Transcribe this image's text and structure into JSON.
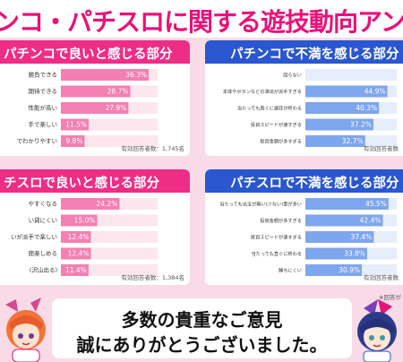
{
  "header": {
    "title": "ンコ・パチスロに関する遊技動向アンケート結"
  },
  "colors": {
    "pink_head": "#ee2d86",
    "pink_bar": "#f47fb2",
    "pink_track": "#fde6ee",
    "blue_head": "#2a56cf",
    "blue_bar": "#7ea6ee",
    "blue_track": "#e6eefb",
    "background": "#f8dbe6"
  },
  "chart_data": [
    {
      "type": "bar",
      "title": "パチンコで良いと感じる部分",
      "categories": [
        "勝負できる",
        "期待できる",
        "性能が高い",
        "手で楽しい",
        "でわかりやすい"
      ],
      "values": [
        36.3,
        28.7,
        27.9,
        11.5,
        9.8
      ],
      "value_labels": [
        "36.3%",
        "28.7%",
        "27.9%",
        "11.5%",
        "9.8%"
      ],
      "respondents": "有効回答者数：1,745名",
      "xlim": [
        0,
        40
      ]
    },
    {
      "type": "bar",
      "title": "パチンコで不満を感じる部分",
      "categories": [
        "回らない",
        "本体やボタンなどの演出が派手すぎる",
        "当たっても直ぐに連荘が終わる",
        "投資スピードが速すぎる",
        "投資金額が多すぎる"
      ],
      "values": [
        null,
        44.9,
        40.3,
        37.2,
        32.7
      ],
      "value_labels": [
        "",
        "44.9%",
        "40.3%",
        "37.2%",
        "32.7%"
      ],
      "respondents": "有効回答者数",
      "xlim": [
        0,
        50
      ]
    },
    {
      "type": "bar",
      "title": "チスロで良いと感じる部分",
      "categories": [
        "やすくなる",
        "い貸にくい",
        "いが派手で楽しい",
        "簡楽しめる",
        "(沢山出る)"
      ],
      "values": [
        24.2,
        15.0,
        12.4,
        12.4,
        11.4
      ],
      "value_labels": [
        "24.2%",
        "15.0%",
        "12.4%",
        "12.4%",
        "11.4%"
      ],
      "respondents": "有効回答者数：1,384名",
      "xlim": [
        0,
        40
      ]
    },
    {
      "type": "bar",
      "title": "パチスロで不満を感じる部分",
      "categories": [
        "当たっても出玉が無い(少ない)事が多い",
        "投資金額が多すぎる",
        "投資スピードが速すぎる",
        "当たっても直ぐに終わる",
        "勝ちにくい"
      ],
      "values": [
        45.5,
        42.4,
        37.4,
        33.8,
        30.9
      ],
      "value_labels": [
        "45.5%",
        "42.4%",
        "37.4%",
        "33.8%",
        "30.9%"
      ],
      "respondents": "有効回答者数",
      "xlim": [
        0,
        50
      ]
    }
  ],
  "footer": {
    "line1": "多数の貴重なご意見",
    "line2": "誠にありがとうございました。",
    "note": "※回答が"
  }
}
